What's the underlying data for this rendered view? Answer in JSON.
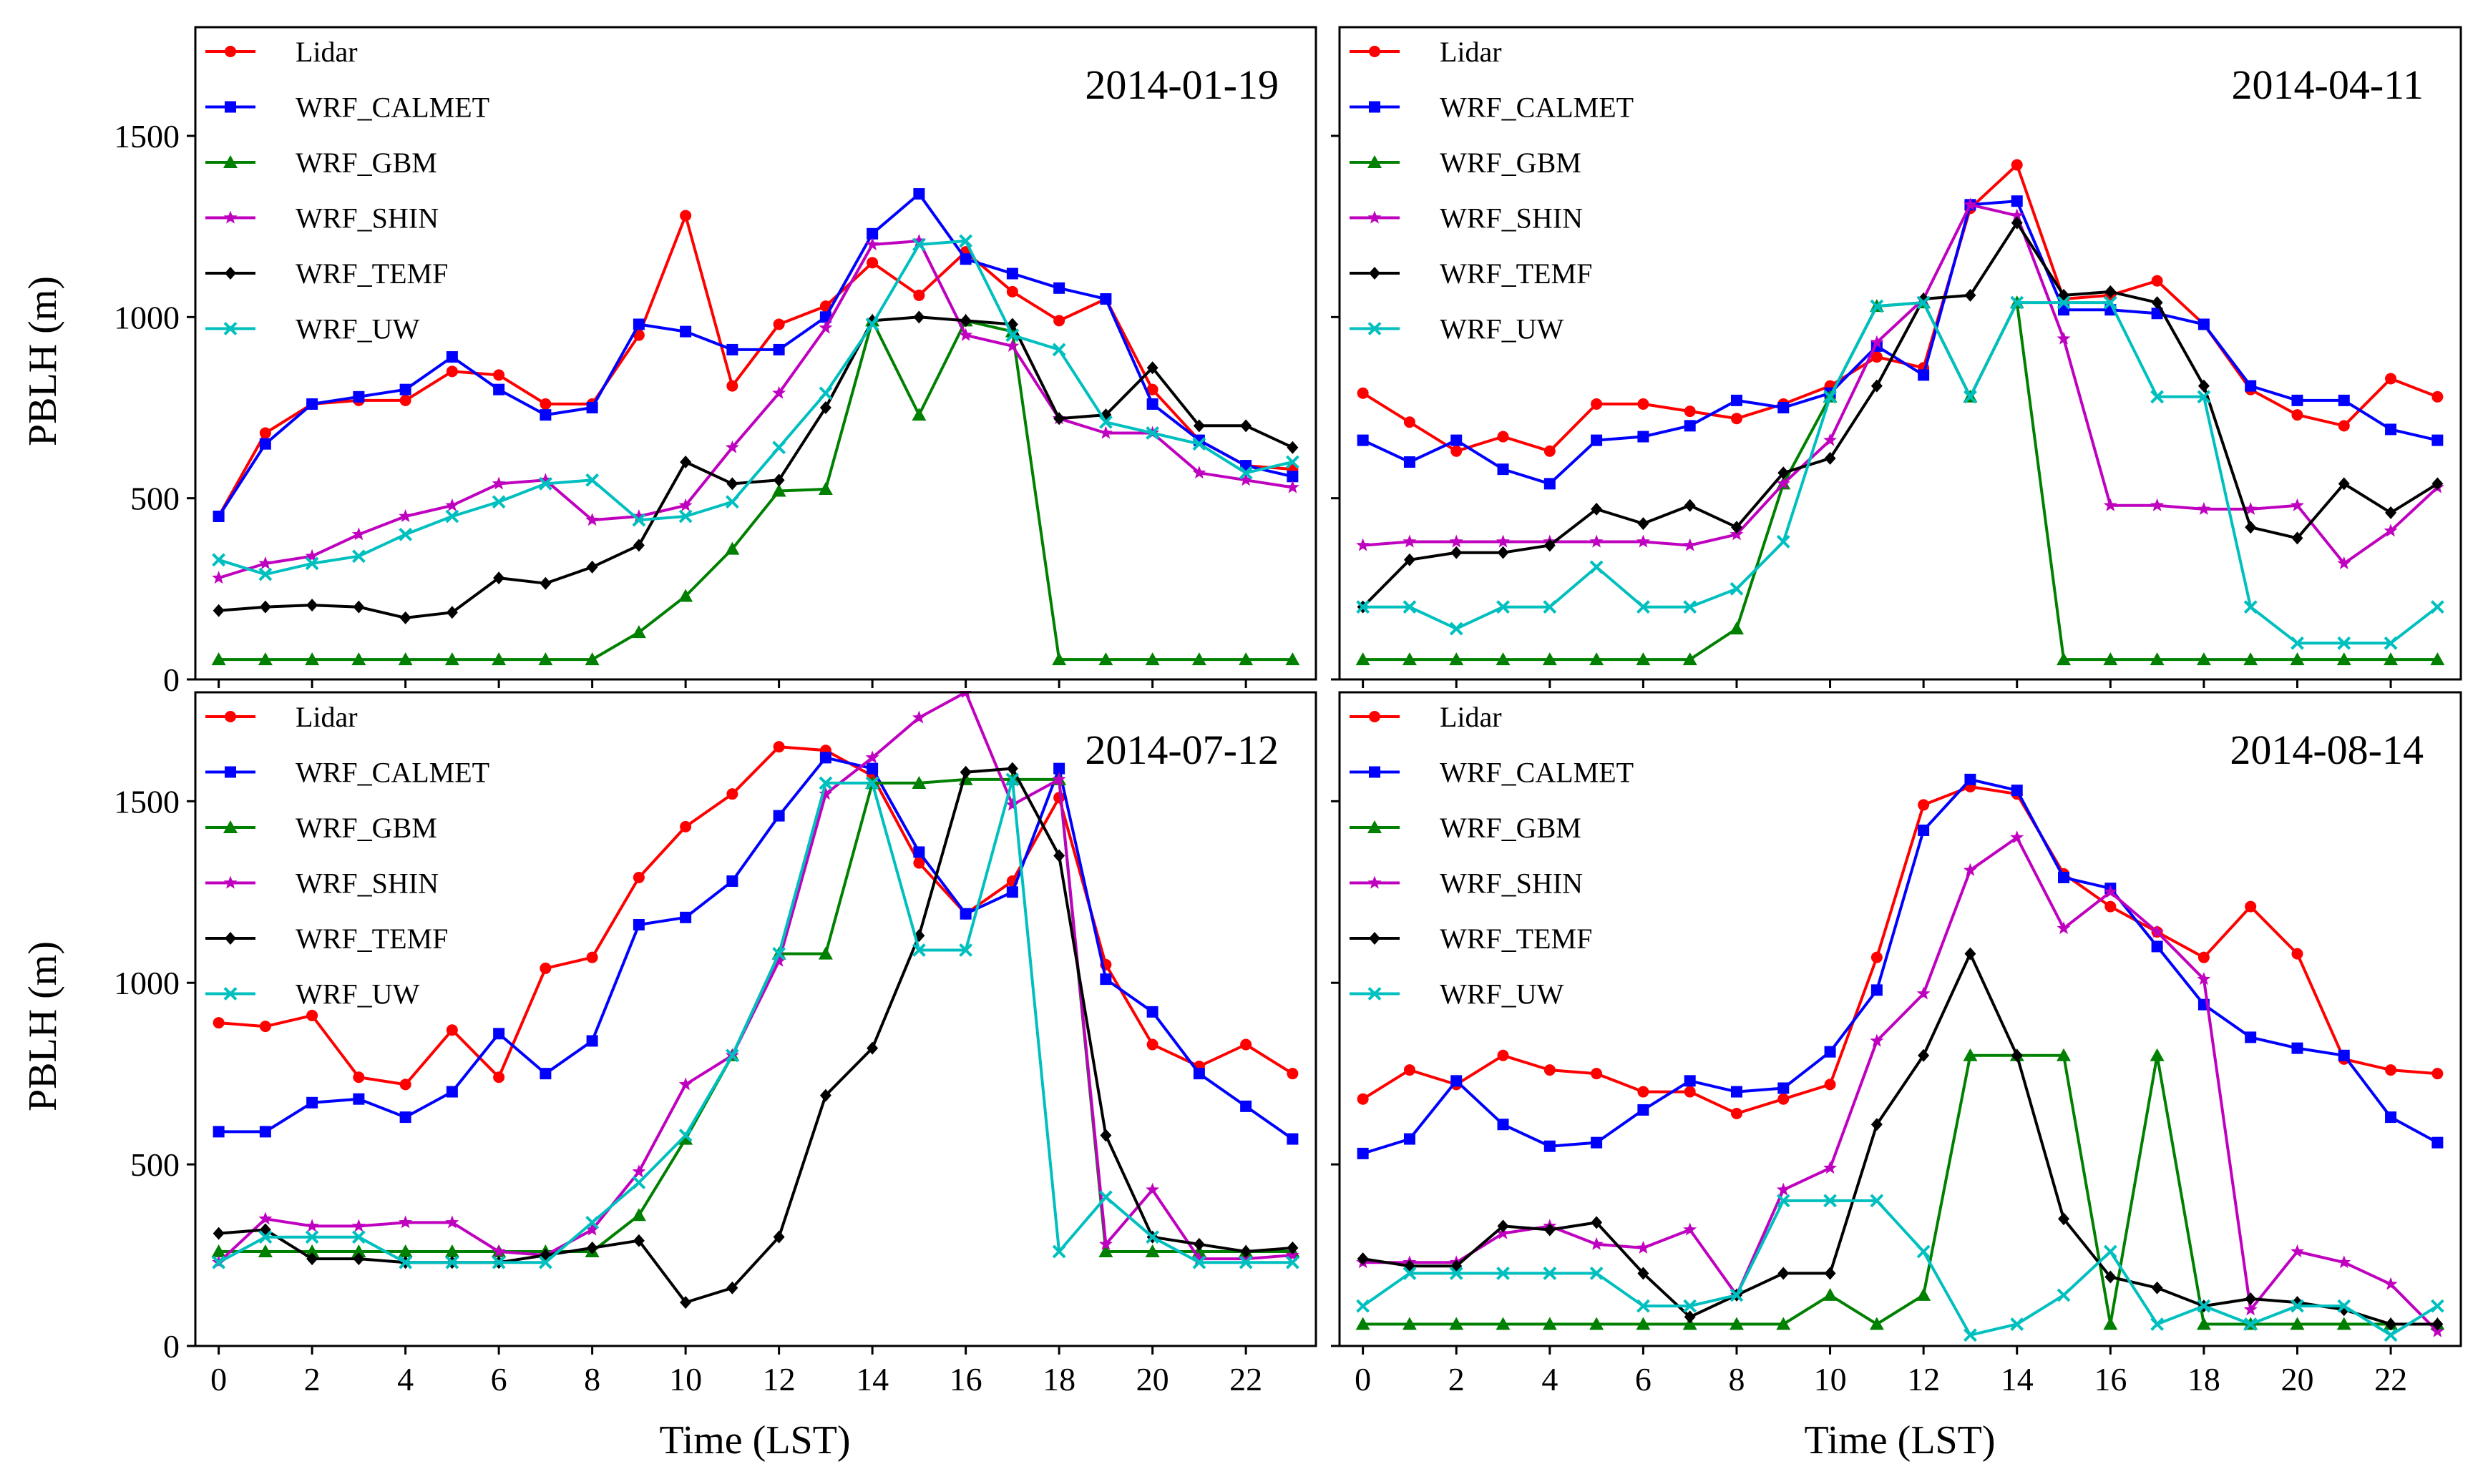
{
  "figure": {
    "ylabel": "PBLH (m)",
    "xlabel": "Time (LST)"
  },
  "colors": {
    "Lidar": "#ff0000",
    "WRF_CALMET": "#0000ff",
    "WRF_GBM": "#008000",
    "WRF_SHIN": "#bf00bf",
    "WRF_TEMF": "#000000",
    "WRF_UW": "#00bfbf"
  },
  "markers": {
    "Lidar": "circle",
    "WRF_CALMET": "square",
    "WRF_GBM": "triangle",
    "WRF_SHIN": "star",
    "WRF_TEMF": "diamond",
    "WRF_UW": "x"
  },
  "chart_data": [
    {
      "type": "line",
      "title": "2014-01-19",
      "xlabel": "",
      "ylabel": "PBLH (m)",
      "xlim": [
        -0.5,
        23.5
      ],
      "ylim": [
        0,
        1800
      ],
      "xticks": [
        "0",
        "2",
        "4",
        "6",
        "8",
        "10",
        "12",
        "14",
        "16",
        "18",
        "20",
        "22"
      ],
      "yticks": [
        "0",
        "500",
        "1000",
        "1500"
      ],
      "x": [
        0,
        1,
        2,
        3,
        4,
        5,
        6,
        7,
        8,
        9,
        10,
        11,
        12,
        13,
        14,
        15,
        16,
        17,
        18,
        19,
        20,
        21,
        22,
        23
      ],
      "series": [
        {
          "name": "Lidar",
          "values": [
            450,
            680,
            760,
            770,
            770,
            850,
            840,
            760,
            760,
            950,
            1280,
            810,
            980,
            1030,
            1150,
            1060,
            1180,
            1070,
            990,
            1050,
            800,
            660,
            590,
            580
          ]
        },
        {
          "name": "WRF_CALMET",
          "values": [
            450,
            650,
            760,
            780,
            800,
            890,
            800,
            730,
            750,
            980,
            960,
            910,
            910,
            1000,
            1230,
            1340,
            1160,
            1120,
            1080,
            1050,
            760,
            660,
            590,
            560
          ]
        },
        {
          "name": "WRF_GBM",
          "values": [
            55,
            55,
            55,
            55,
            55,
            55,
            55,
            55,
            55,
            130,
            230,
            360,
            520,
            525,
            990,
            730,
            990,
            960,
            55,
            55,
            55,
            55,
            55,
            55
          ]
        },
        {
          "name": "WRF_SHIN",
          "values": [
            280,
            320,
            340,
            400,
            450,
            480,
            540,
            550,
            440,
            450,
            480,
            640,
            790,
            970,
            1200,
            1210,
            950,
            920,
            720,
            680,
            680,
            570,
            550,
            530
          ]
        },
        {
          "name": "WRF_TEMF",
          "values": [
            190,
            200,
            205,
            200,
            170,
            185,
            280,
            265,
            310,
            370,
            600,
            540,
            550,
            750,
            990,
            1000,
            990,
            980,
            720,
            730,
            860,
            700,
            700,
            640
          ]
        },
        {
          "name": "WRF_UW",
          "values": [
            330,
            290,
            320,
            340,
            400,
            450,
            490,
            540,
            550,
            440,
            450,
            490,
            640,
            790,
            980,
            1200,
            1210,
            950,
            910,
            710,
            680,
            650,
            570,
            600
          ]
        }
      ]
    },
    {
      "type": "line",
      "title": "2014-04-11",
      "xlabel": "",
      "ylabel": "",
      "xlim": [
        -0.5,
        23.5
      ],
      "ylim": [
        0,
        1800
      ],
      "xticks": [
        "0",
        "2",
        "4",
        "6",
        "8",
        "10",
        "12",
        "14",
        "16",
        "18",
        "20",
        "22"
      ],
      "yticks": [
        "0",
        "500",
        "1000",
        "1500"
      ],
      "x": [
        0,
        1,
        2,
        3,
        4,
        5,
        6,
        7,
        8,
        9,
        10,
        11,
        12,
        13,
        14,
        15,
        16,
        17,
        18,
        19,
        20,
        21,
        22,
        23
      ],
      "series": [
        {
          "name": "Lidar",
          "values": [
            790,
            710,
            630,
            670,
            630,
            760,
            760,
            740,
            720,
            760,
            810,
            890,
            860,
            1300,
            1420,
            1050,
            1060,
            1100,
            980,
            800,
            730,
            700,
            830,
            780
          ]
        },
        {
          "name": "WRF_CALMET",
          "values": [
            660,
            600,
            660,
            580,
            540,
            660,
            670,
            700,
            770,
            750,
            790,
            920,
            840,
            1310,
            1320,
            1020,
            1020,
            1010,
            980,
            810,
            770,
            770,
            690,
            660
          ]
        },
        {
          "name": "WRF_GBM",
          "values": [
            55,
            55,
            55,
            55,
            55,
            55,
            55,
            55,
            140,
            540,
            780,
            1030,
            1040,
            780,
            1040,
            55,
            55,
            55,
            55,
            55,
            55,
            55,
            55,
            55
          ]
        },
        {
          "name": "WRF_SHIN",
          "values": [
            370,
            380,
            380,
            380,
            380,
            380,
            380,
            370,
            400,
            540,
            660,
            930,
            1050,
            1310,
            1280,
            940,
            480,
            480,
            470,
            470,
            480,
            320,
            410,
            530
          ]
        },
        {
          "name": "WRF_TEMF",
          "values": [
            200,
            330,
            350,
            350,
            370,
            470,
            430,
            480,
            420,
            570,
            610,
            810,
            1050,
            1060,
            1260,
            1060,
            1070,
            1040,
            810,
            420,
            390,
            540,
            460,
            540
          ]
        },
        {
          "name": "WRF_UW",
          "values": [
            200,
            200,
            140,
            200,
            200,
            310,
            200,
            200,
            250,
            380,
            780,
            1030,
            1040,
            780,
            1040,
            1040,
            1040,
            780,
            780,
            200,
            100,
            100,
            100,
            200
          ]
        }
      ]
    },
    {
      "type": "line",
      "title": "2014-07-12",
      "xlabel": "Time (LST)",
      "ylabel": "PBLH (m)",
      "xlim": [
        -0.5,
        23.5
      ],
      "ylim": [
        0,
        1800
      ],
      "xticks": [
        "0",
        "2",
        "4",
        "6",
        "8",
        "10",
        "12",
        "14",
        "16",
        "18",
        "20",
        "22"
      ],
      "yticks": [
        "0",
        "500",
        "1000",
        "1500"
      ],
      "x": [
        0,
        1,
        2,
        3,
        4,
        5,
        6,
        7,
        8,
        9,
        10,
        11,
        12,
        13,
        14,
        15,
        16,
        17,
        18,
        19,
        20,
        21,
        22,
        23
      ],
      "series": [
        {
          "name": "Lidar",
          "values": [
            890,
            880,
            910,
            740,
            720,
            870,
            740,
            1040,
            1070,
            1290,
            1430,
            1520,
            1650,
            1640,
            1570,
            1330,
            1190,
            1280,
            1510,
            1050,
            830,
            770,
            830,
            750
          ]
        },
        {
          "name": "WRF_CALMET",
          "values": [
            590,
            590,
            670,
            680,
            630,
            700,
            860,
            750,
            840,
            1160,
            1180,
            1280,
            1460,
            1620,
            1590,
            1360,
            1190,
            1250,
            1590,
            1010,
            920,
            750,
            660,
            570
          ]
        },
        {
          "name": "WRF_GBM",
          "values": [
            260,
            260,
            260,
            260,
            260,
            260,
            260,
            260,
            260,
            360,
            570,
            800,
            1080,
            1080,
            1550,
            1550,
            1560,
            1560,
            1560,
            260,
            260,
            260,
            260,
            260
          ]
        },
        {
          "name": "WRF_SHIN",
          "values": [
            230,
            350,
            330,
            330,
            340,
            340,
            260,
            250,
            320,
            480,
            720,
            800,
            1060,
            1520,
            1620,
            1730,
            1800,
            1490,
            1560,
            280,
            430,
            240,
            240,
            250
          ]
        },
        {
          "name": "WRF_TEMF",
          "values": [
            310,
            320,
            240,
            240,
            230,
            230,
            230,
            250,
            270,
            290,
            120,
            160,
            300,
            690,
            820,
            1130,
            1580,
            1590,
            1350,
            580,
            300,
            280,
            260,
            270
          ]
        },
        {
          "name": "WRF_UW",
          "values": [
            230,
            300,
            300,
            300,
            230,
            230,
            230,
            230,
            340,
            450,
            580,
            800,
            1080,
            1550,
            1550,
            1090,
            1090,
            1560,
            260,
            410,
            300,
            230,
            230,
            230
          ]
        }
      ]
    },
    {
      "type": "line",
      "title": "2014-08-14",
      "xlabel": "Time (LST)",
      "ylabel": "",
      "xlim": [
        -0.5,
        23.5
      ],
      "ylim": [
        0,
        1800
      ],
      "xticks": [
        "0",
        "2",
        "4",
        "6",
        "8",
        "10",
        "12",
        "14",
        "16",
        "18",
        "20",
        "22"
      ],
      "yticks": [
        "0",
        "500",
        "1000",
        "1500"
      ],
      "x": [
        0,
        1,
        2,
        3,
        4,
        5,
        6,
        7,
        8,
        9,
        10,
        11,
        12,
        13,
        14,
        15,
        16,
        17,
        18,
        19,
        20,
        21,
        22,
        23
      ],
      "series": [
        {
          "name": "Lidar",
          "values": [
            680,
            760,
            720,
            800,
            760,
            750,
            700,
            700,
            640,
            680,
            720,
            1070,
            1490,
            1540,
            1520,
            1300,
            1210,
            1140,
            1070,
            1210,
            1080,
            790,
            760,
            750
          ]
        },
        {
          "name": "WRF_CALMET",
          "values": [
            530,
            570,
            730,
            610,
            550,
            560,
            650,
            730,
            700,
            710,
            810,
            980,
            1420,
            1560,
            1530,
            1290,
            1260,
            1100,
            940,
            850,
            820,
            800,
            630,
            560
          ]
        },
        {
          "name": "WRF_GBM",
          "values": [
            60,
            60,
            60,
            60,
            60,
            60,
            60,
            60,
            60,
            60,
            140,
            60,
            140,
            800,
            800,
            800,
            60,
            800,
            60,
            60,
            60,
            60,
            60,
            60
          ]
        },
        {
          "name": "WRF_SHIN",
          "values": [
            230,
            230,
            230,
            310,
            330,
            280,
            270,
            320,
            140,
            430,
            490,
            840,
            970,
            1310,
            1400,
            1150,
            1250,
            1140,
            1010,
            100,
            260,
            230,
            170,
            40
          ]
        },
        {
          "name": "WRF_TEMF",
          "values": [
            240,
            220,
            220,
            330,
            320,
            340,
            200,
            80,
            140,
            200,
            200,
            610,
            800,
            1080,
            800,
            350,
            190,
            160,
            110,
            130,
            120,
            100,
            60,
            60
          ]
        },
        {
          "name": "WRF_UW",
          "values": [
            110,
            200,
            200,
            200,
            200,
            200,
            110,
            110,
            140,
            400,
            400,
            400,
            260,
            30,
            60,
            140,
            260,
            60,
            110,
            60,
            110,
            110,
            30,
            110
          ]
        }
      ]
    }
  ]
}
